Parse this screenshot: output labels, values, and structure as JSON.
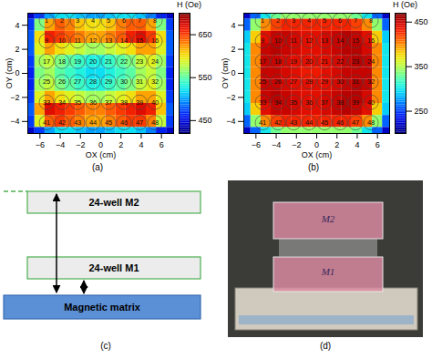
{
  "chart_data": [
    {
      "type": "heatmap",
      "label": "(a)",
      "x_label": "OX (cm)",
      "y_label": "OY (cm)",
      "x": [
        -7,
        -6,
        -5,
        -4,
        -3,
        -2,
        -1,
        0,
        1,
        2,
        3,
        4,
        5,
        6,
        7
      ],
      "y": [
        5,
        4,
        3,
        2,
        1,
        0,
        -1,
        -2,
        -3,
        -4,
        -5
      ],
      "values": [
        [
          440,
          470,
          500,
          520,
          520,
          510,
          500,
          500,
          510,
          520,
          520,
          510,
          490,
          460,
          440
        ],
        [
          470,
          560,
          620,
          640,
          630,
          610,
          600,
          600,
          610,
          630,
          640,
          640,
          620,
          560,
          470
        ],
        [
          480,
          600,
          660,
          650,
          640,
          630,
          620,
          620,
          630,
          640,
          660,
          670,
          650,
          600,
          480
        ],
        [
          480,
          590,
          620,
          600,
          590,
          580,
          570,
          570,
          580,
          590,
          600,
          620,
          620,
          590,
          480
        ],
        [
          470,
          570,
          580,
          560,
          550,
          540,
          530,
          530,
          540,
          550,
          560,
          580,
          590,
          570,
          470
        ],
        [
          460,
          560,
          570,
          550,
          540,
          530,
          520,
          520,
          530,
          540,
          550,
          570,
          580,
          560,
          460
        ],
        [
          460,
          570,
          580,
          560,
          550,
          540,
          530,
          530,
          540,
          550,
          560,
          580,
          590,
          570,
          460
        ],
        [
          470,
          590,
          620,
          600,
          590,
          580,
          570,
          570,
          580,
          590,
          600,
          620,
          620,
          590,
          470
        ],
        [
          480,
          620,
          670,
          660,
          650,
          640,
          630,
          630,
          640,
          650,
          660,
          670,
          660,
          610,
          480
        ],
        [
          470,
          590,
          640,
          650,
          640,
          630,
          620,
          620,
          630,
          640,
          650,
          650,
          630,
          580,
          470
        ],
        [
          440,
          470,
          500,
          520,
          520,
          510,
          500,
          500,
          510,
          520,
          520,
          510,
          490,
          460,
          440
        ]
      ],
      "xlim": [
        -7.2,
        7.2
      ],
      "ylim": [
        -5,
        5
      ],
      "xticks": [
        -6,
        -4,
        -2,
        0,
        2,
        4,
        6
      ],
      "yticks": [
        -4,
        -2,
        0,
        2,
        4
      ],
      "colorbar": {
        "label": "H (Oe)",
        "range": [
          420,
          700
        ],
        "ticks": [
          450,
          550,
          650
        ]
      },
      "wells": {
        "x": [
          -5.35,
          -3.82,
          -2.29,
          -0.76,
          0.77,
          2.3,
          3.83,
          5.36
        ],
        "y": [
          4.4,
          2.7,
          1.0,
          -0.7,
          -2.4,
          -4.1
        ],
        "labels": [
          [
            1,
            2,
            3,
            4,
            5,
            6,
            7,
            8
          ],
          [
            9,
            10,
            11,
            12,
            13,
            14,
            15,
            16
          ],
          [
            17,
            18,
            19,
            20,
            21,
            22,
            23,
            24
          ],
          [
            25,
            26,
            27,
            28,
            29,
            30,
            31,
            32
          ],
          [
            33,
            34,
            35,
            36,
            37,
            38,
            39,
            40
          ],
          [
            41,
            42,
            43,
            44,
            45,
            46,
            47,
            48
          ]
        ]
      }
    },
    {
      "type": "heatmap",
      "label": "(b)",
      "x_label": "OX (cm)",
      "y_label": "OY (cm)",
      "x": [
        -7,
        -6,
        -5,
        -4,
        -3,
        -2,
        -1,
        0,
        1,
        2,
        3,
        4,
        5,
        6,
        7
      ],
      "y": [
        5,
        4,
        3,
        2,
        1,
        0,
        -1,
        -2,
        -3,
        -4,
        -5
      ],
      "values": [
        [
          220,
          260,
          300,
          330,
          340,
          340,
          340,
          340,
          340,
          340,
          340,
          330,
          300,
          260,
          220
        ],
        [
          260,
          340,
          400,
          420,
          430,
          430,
          430,
          430,
          430,
          430,
          430,
          420,
          400,
          340,
          260
        ],
        [
          290,
          380,
          440,
          450,
          450,
          445,
          440,
          440,
          445,
          450,
          455,
          450,
          440,
          380,
          290
        ],
        [
          300,
          400,
          450,
          455,
          450,
          445,
          440,
          440,
          445,
          450,
          455,
          455,
          445,
          400,
          300
        ],
        [
          300,
          400,
          450,
          450,
          445,
          440,
          440,
          440,
          440,
          445,
          450,
          455,
          450,
          400,
          300
        ],
        [
          300,
          400,
          450,
          450,
          445,
          440,
          435,
          435,
          440,
          445,
          450,
          450,
          450,
          400,
          300
        ],
        [
          300,
          400,
          450,
          450,
          445,
          440,
          440,
          440,
          440,
          445,
          450,
          455,
          450,
          400,
          300
        ],
        [
          300,
          400,
          450,
          455,
          450,
          445,
          440,
          440,
          445,
          450,
          455,
          455,
          445,
          400,
          300
        ],
        [
          290,
          380,
          440,
          450,
          450,
          445,
          440,
          440,
          445,
          450,
          455,
          450,
          440,
          380,
          290
        ],
        [
          260,
          340,
          400,
          420,
          430,
          430,
          430,
          430,
          430,
          430,
          430,
          420,
          400,
          340,
          260
        ],
        [
          220,
          260,
          300,
          330,
          340,
          340,
          340,
          340,
          340,
          340,
          340,
          330,
          300,
          260,
          220
        ]
      ],
      "xlim": [
        -7.2,
        7.2
      ],
      "ylim": [
        -5,
        5
      ],
      "xticks": [
        -6,
        -4,
        -2,
        0,
        2,
        4,
        6
      ],
      "yticks": [
        -4,
        -2,
        0,
        2,
        4
      ],
      "colorbar": {
        "label": "H (Oe)",
        "range": [
          200,
          470
        ],
        "ticks": [
          250,
          350,
          450
        ]
      },
      "wells": {
        "x": [
          -5.35,
          -3.82,
          -2.29,
          -0.76,
          0.77,
          2.3,
          3.83,
          5.36
        ],
        "y": [
          4.4,
          2.7,
          1.0,
          -0.7,
          -2.4,
          -4.1
        ],
        "labels": [
          [
            1,
            2,
            3,
            4,
            5,
            6,
            7,
            8
          ],
          [
            9,
            10,
            11,
            12,
            13,
            14,
            15,
            16
          ],
          [
            17,
            18,
            19,
            20,
            21,
            22,
            23,
            24
          ],
          [
            25,
            26,
            27,
            28,
            29,
            30,
            31,
            32
          ],
          [
            33,
            34,
            35,
            36,
            37,
            38,
            39,
            40
          ],
          [
            41,
            42,
            43,
            44,
            45,
            46,
            47,
            48
          ]
        ]
      }
    }
  ],
  "diagram": {
    "label": "(c)",
    "nodes": [
      {
        "label": "24-well M2"
      },
      {
        "label": "24-well M1"
      },
      {
        "label": "Magnetic matrix"
      }
    ]
  },
  "photo": {
    "label": "(d)",
    "texts": [
      "M2",
      "M1"
    ]
  }
}
